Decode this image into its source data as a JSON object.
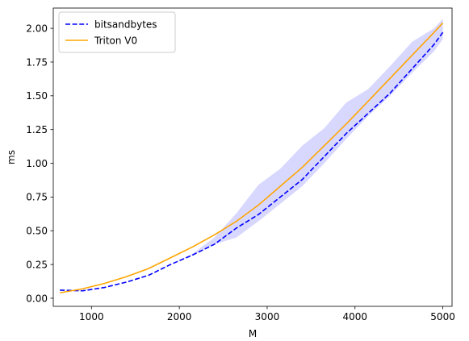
{
  "chart_data": {
    "type": "line",
    "title": "",
    "xlabel": "M",
    "ylabel": "ms",
    "xlim": [
      565,
      5105
    ],
    "ylim": [
      -0.06,
      2.15
    ],
    "xticks": [
      1000,
      2000,
      3000,
      4000,
      5000
    ],
    "xtick_labels": [
      "1000",
      "2000",
      "3000",
      "4000",
      "5000"
    ],
    "yticks": [
      0,
      0.25,
      0.5,
      0.75,
      1.0,
      1.25,
      1.5,
      1.75,
      2.0
    ],
    "ytick_labels": [
      "0.00",
      "0.25",
      "0.50",
      "0.75",
      "1.00",
      "1.25",
      "1.50",
      "1.75",
      "2.00"
    ],
    "grid": false,
    "legend_position": "top-left",
    "x": [
      640,
      900,
      1150,
      1400,
      1650,
      1900,
      2150,
      2400,
      2650,
      2900,
      3150,
      3400,
      3650,
      3900,
      4150,
      4400,
      4650,
      4900,
      5000
    ],
    "series": [
      {
        "name": "bitsandbytes",
        "color": "#0000ff",
        "linestyle": "dashed",
        "values": [
          0.06,
          0.055,
          0.08,
          0.12,
          0.17,
          0.25,
          0.32,
          0.4,
          0.52,
          0.62,
          0.75,
          0.88,
          1.05,
          1.22,
          1.37,
          1.52,
          1.7,
          1.88,
          1.97
        ],
        "band_low": [
          0.06,
          0.055,
          0.08,
          0.12,
          0.17,
          0.25,
          0.32,
          0.4,
          0.45,
          0.57,
          0.7,
          0.83,
          1.0,
          1.18,
          1.35,
          1.5,
          1.67,
          1.83,
          1.92
        ],
        "band_high": [
          0.06,
          0.06,
          0.08,
          0.12,
          0.17,
          0.25,
          0.33,
          0.45,
          0.63,
          0.84,
          0.96,
          1.13,
          1.26,
          1.45,
          1.55,
          1.72,
          1.9,
          2.0,
          2.07
        ],
        "band_color": "#6464ff"
      },
      {
        "name": "Triton V0",
        "color": "#ffa500",
        "linestyle": "solid",
        "values": [
          0.04,
          0.07,
          0.11,
          0.16,
          0.22,
          0.3,
          0.38,
          0.47,
          0.57,
          0.69,
          0.83,
          0.97,
          1.13,
          1.29,
          1.46,
          1.63,
          1.8,
          1.97,
          2.04
        ]
      }
    ]
  }
}
